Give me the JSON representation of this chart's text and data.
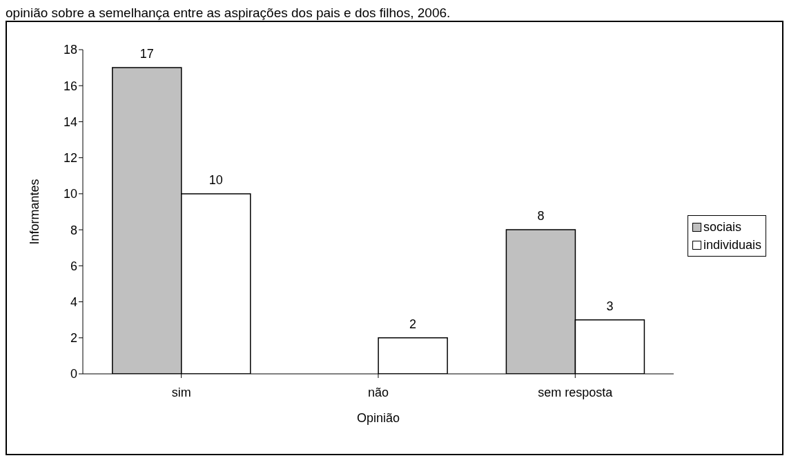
{
  "chart_data": {
    "type": "bar",
    "title": "opinião sobre a semelhança entre as aspirações dos pais e dos filhos, 2006.",
    "xlabel": "Opinião",
    "ylabel": "Informantes",
    "categories": [
      "sim",
      "não",
      "sem resposta"
    ],
    "series": [
      {
        "name": "sociais",
        "color": "#c0c0c0",
        "values": [
          17,
          null,
          8
        ]
      },
      {
        "name": "individuais",
        "color": "#ffffff",
        "values": [
          10,
          2,
          3
        ]
      }
    ],
    "ylim": [
      0,
      18
    ],
    "yticks": [
      0,
      2,
      4,
      6,
      8,
      10,
      12,
      14,
      16,
      18
    ],
    "grid": false,
    "legend": "right",
    "data_labels": true
  }
}
